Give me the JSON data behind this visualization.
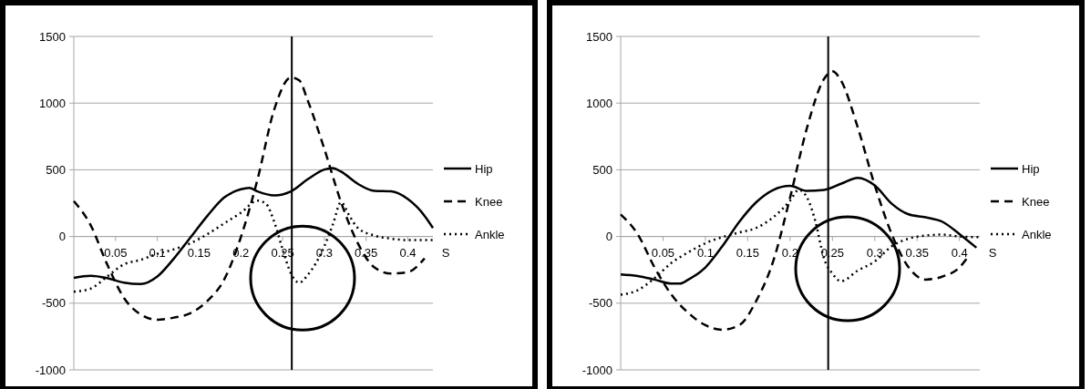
{
  "chart_data": [
    {
      "type": "line",
      "xlabel": "S",
      "xlim": [
        0,
        0.43
      ],
      "xticks": [
        0.05,
        0.1,
        0.15,
        0.2,
        0.25,
        0.3,
        0.35,
        0.4
      ],
      "ylim": [
        -1000,
        1500
      ],
      "yticks": [
        -1000,
        -500,
        0,
        500,
        1000,
        1500
      ],
      "grid": "y",
      "legend": "right",
      "ref_lines": [
        {
          "axis": "x",
          "value": 0.261,
          "color": "#000000"
        }
      ],
      "series": [
        {
          "name": "Hip",
          "color": "#000000",
          "line_style": "solid",
          "x": [
            0,
            0.02,
            0.04,
            0.06,
            0.08,
            0.1,
            0.12,
            0.14,
            0.16,
            0.18,
            0.2,
            0.21,
            0.22,
            0.24,
            0.26,
            0.28,
            0.3,
            0.31,
            0.32,
            0.34,
            0.36,
            0.38,
            0.4,
            0.42,
            0.43
          ],
          "values": [
            -310,
            -295,
            -312,
            -346,
            -357,
            -300,
            -164,
            -5,
            155,
            292,
            354,
            365,
            338,
            308,
            338,
            429,
            502,
            513,
            486,
            395,
            342,
            338,
            280,
            155,
            64
          ]
        },
        {
          "name": "Knee",
          "color": "#000000",
          "line_style": "dashed",
          "x": [
            0,
            0.02,
            0.04,
            0.06,
            0.08,
            0.1,
            0.12,
            0.14,
            0.16,
            0.18,
            0.2,
            0.22,
            0.24,
            0.26,
            0.27,
            0.28,
            0.3,
            0.32,
            0.34,
            0.36,
            0.38,
            0.4,
            0.42
          ],
          "values": [
            265,
            87,
            -210,
            -460,
            -585,
            -624,
            -608,
            -574,
            -483,
            -323,
            -5,
            429,
            953,
            1192,
            1170,
            1021,
            656,
            257,
            -50,
            -232,
            -278,
            -267,
            -164
          ]
        },
        {
          "name": "Ankle",
          "color": "#000000",
          "line_style": "dotted",
          "x": [
            0,
            0.02,
            0.04,
            0.06,
            0.08,
            0.1,
            0.12,
            0.14,
            0.16,
            0.18,
            0.2,
            0.22,
            0.23,
            0.24,
            0.25,
            0.26,
            0.27,
            0.28,
            0.3,
            0.31,
            0.32,
            0.33,
            0.34,
            0.36,
            0.38,
            0.4,
            0.43
          ],
          "values": [
            -414,
            -391,
            -300,
            -209,
            -175,
            -130,
            -96,
            -50,
            18,
            98,
            178,
            269,
            246,
            109,
            -96,
            -278,
            -346,
            -289,
            -73,
            87,
            257,
            155,
            64,
            7,
            -16,
            -27,
            -27
          ]
        }
      ]
    },
    {
      "type": "line",
      "xlabel": "S",
      "xlim": [
        0,
        0.424
      ],
      "xticks": [
        0.05,
        0.1,
        0.15,
        0.2,
        0.25,
        0.3,
        0.35,
        0.4
      ],
      "ylim": [
        -1000,
        1500
      ],
      "yticks": [
        -1000,
        -500,
        0,
        500,
        1000,
        1500
      ],
      "grid": "y",
      "legend": "right",
      "ref_lines": [
        {
          "axis": "x",
          "value": 0.245,
          "color": "#000000"
        }
      ],
      "series": [
        {
          "name": "Hip",
          "color": "#000000",
          "line_style": "solid",
          "x": [
            0,
            0.02,
            0.04,
            0.06,
            0.07,
            0.08,
            0.1,
            0.12,
            0.14,
            0.16,
            0.18,
            0.2,
            0.22,
            0.24,
            0.26,
            0.28,
            0.3,
            0.32,
            0.34,
            0.36,
            0.38,
            0.4,
            0.42
          ],
          "values": [
            -284,
            -296,
            -323,
            -353,
            -353,
            -323,
            -232,
            -73,
            110,
            257,
            349,
            379,
            342,
            349,
            395,
            440,
            383,
            246,
            166,
            144,
            110,
            18,
            -84
          ]
        },
        {
          "name": "Knee",
          "color": "#000000",
          "line_style": "dashed",
          "x": [
            0,
            0.02,
            0.04,
            0.06,
            0.08,
            0.1,
            0.12,
            0.14,
            0.16,
            0.18,
            0.2,
            0.22,
            0.24,
            0.25,
            0.26,
            0.28,
            0.3,
            0.32,
            0.34,
            0.36,
            0.38,
            0.4,
            0.41
          ],
          "values": [
            166,
            18,
            -232,
            -437,
            -574,
            -665,
            -699,
            -665,
            -483,
            -187,
            292,
            816,
            1181,
            1238,
            1170,
            816,
            383,
            18,
            -232,
            -323,
            -300,
            -232,
            -153
          ]
        },
        {
          "name": "Ankle",
          "color": "#000000",
          "line_style": "dotted",
          "x": [
            0,
            0.02,
            0.04,
            0.06,
            0.08,
            0.1,
            0.12,
            0.14,
            0.16,
            0.18,
            0.2,
            0.21,
            0.22,
            0.23,
            0.24,
            0.25,
            0.26,
            0.28,
            0.3,
            0.32,
            0.34,
            0.36,
            0.38,
            0.4,
            0.424
          ],
          "values": [
            -437,
            -403,
            -312,
            -198,
            -118,
            -50,
            -5,
            30,
            64,
            144,
            269,
            349,
            292,
            110,
            -164,
            -278,
            -335,
            -255,
            -187,
            -73,
            -16,
            7,
            14,
            0,
            -5
          ]
        }
      ]
    }
  ]
}
